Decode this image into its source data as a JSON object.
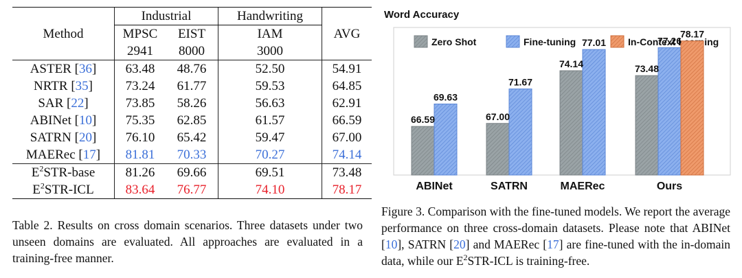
{
  "table": {
    "header": {
      "method": "Method",
      "group_industrial": "Industrial",
      "group_handwriting": "Handwriting",
      "avg": "AVG",
      "datasets": [
        {
          "name": "MPSC",
          "count": "2941"
        },
        {
          "name": "EIST",
          "count": "8000"
        },
        {
          "name": "IAM",
          "count": "3000"
        }
      ]
    },
    "rows": [
      {
        "method": "ASTER",
        "cite": "36",
        "mpsc": "63.48",
        "eist": "48.76",
        "iam": "52.50",
        "avg": "54.91"
      },
      {
        "method": "NRTR",
        "cite": "35",
        "mpsc": "73.24",
        "eist": "61.77",
        "iam": "59.53",
        "avg": "64.85"
      },
      {
        "method": "SAR",
        "cite": "22",
        "mpsc": "73.85",
        "eist": "58.26",
        "iam": "56.63",
        "avg": "62.91"
      },
      {
        "method": "ABINet",
        "cite": "10",
        "mpsc": "75.35",
        "eist": "62.85",
        "iam": "61.57",
        "avg": "66.59"
      },
      {
        "method": "SATRN",
        "cite": "20",
        "mpsc": "76.10",
        "eist": "65.42",
        "iam": "59.47",
        "avg": "67.00"
      },
      {
        "method": "MAERec",
        "cite": "17",
        "mpsc": "81.81",
        "eist": "70.33",
        "iam": "70.27",
        "avg": "74.14"
      }
    ],
    "ours": [
      {
        "prefix": "E",
        "sup": "2",
        "suffix": "STR-base",
        "mpsc": "81.26",
        "eist": "69.66",
        "iam": "69.51",
        "avg": "73.48"
      },
      {
        "prefix": "E",
        "sup": "2",
        "suffix": "STR-ICL",
        "mpsc": "83.64",
        "eist": "76.77",
        "iam": "74.10",
        "avg": "78.17"
      }
    ],
    "caption": "Table 2. Results on cross domain scenarios. Three datasets under two unseen domains are evaluated. All approaches are evaluated in a training-free manner."
  },
  "figure": {
    "caption_before": "Figure 3. Comparison with the fine-tuned models. We report the average performance on three cross-domain datasets. Please note that ABINet [",
    "cite_abinet": "10",
    "caption_mid1": "], SATRN [",
    "cite_satrn": "20",
    "caption_mid2": "] and MAERec [",
    "cite_maerec": "17",
    "caption_mid3": "] are fine-tuned with the in-domain data, while our E",
    "caption_sup": "2",
    "caption_end": "STR-ICL is training-free."
  },
  "chart_data": {
    "type": "bar",
    "title": "Word Accuracy",
    "categories": [
      "ABINet",
      "SATRN",
      "MAERec",
      "Ours"
    ],
    "series": [
      {
        "name": "Zero Shot",
        "values": [
          66.59,
          67.0,
          74.14,
          73.48
        ],
        "color": "#9aa3a6",
        "hatch": "#7a8285"
      },
      {
        "name": "Fine-tuning",
        "values": [
          69.63,
          71.67,
          77.01,
          77.26
        ],
        "color": "#8cb0ee",
        "hatch": "#5a86d6"
      },
      {
        "name": "In-Context Learning",
        "values": [
          null,
          null,
          null,
          78.17
        ],
        "color": "#ef9a6b",
        "hatch": "#cf6f3e"
      }
    ],
    "value_labels": [
      [
        "66.59",
        "67.00",
        "74.14",
        "73.48"
      ],
      [
        "69.63",
        "71.67",
        "77.01",
        "77.26"
      ],
      [
        "",
        "",
        "",
        "78.17"
      ]
    ],
    "ylim": [
      60,
      80
    ],
    "legend": "top",
    "grid": false,
    "xlabel": "",
    "ylabel": ""
  }
}
